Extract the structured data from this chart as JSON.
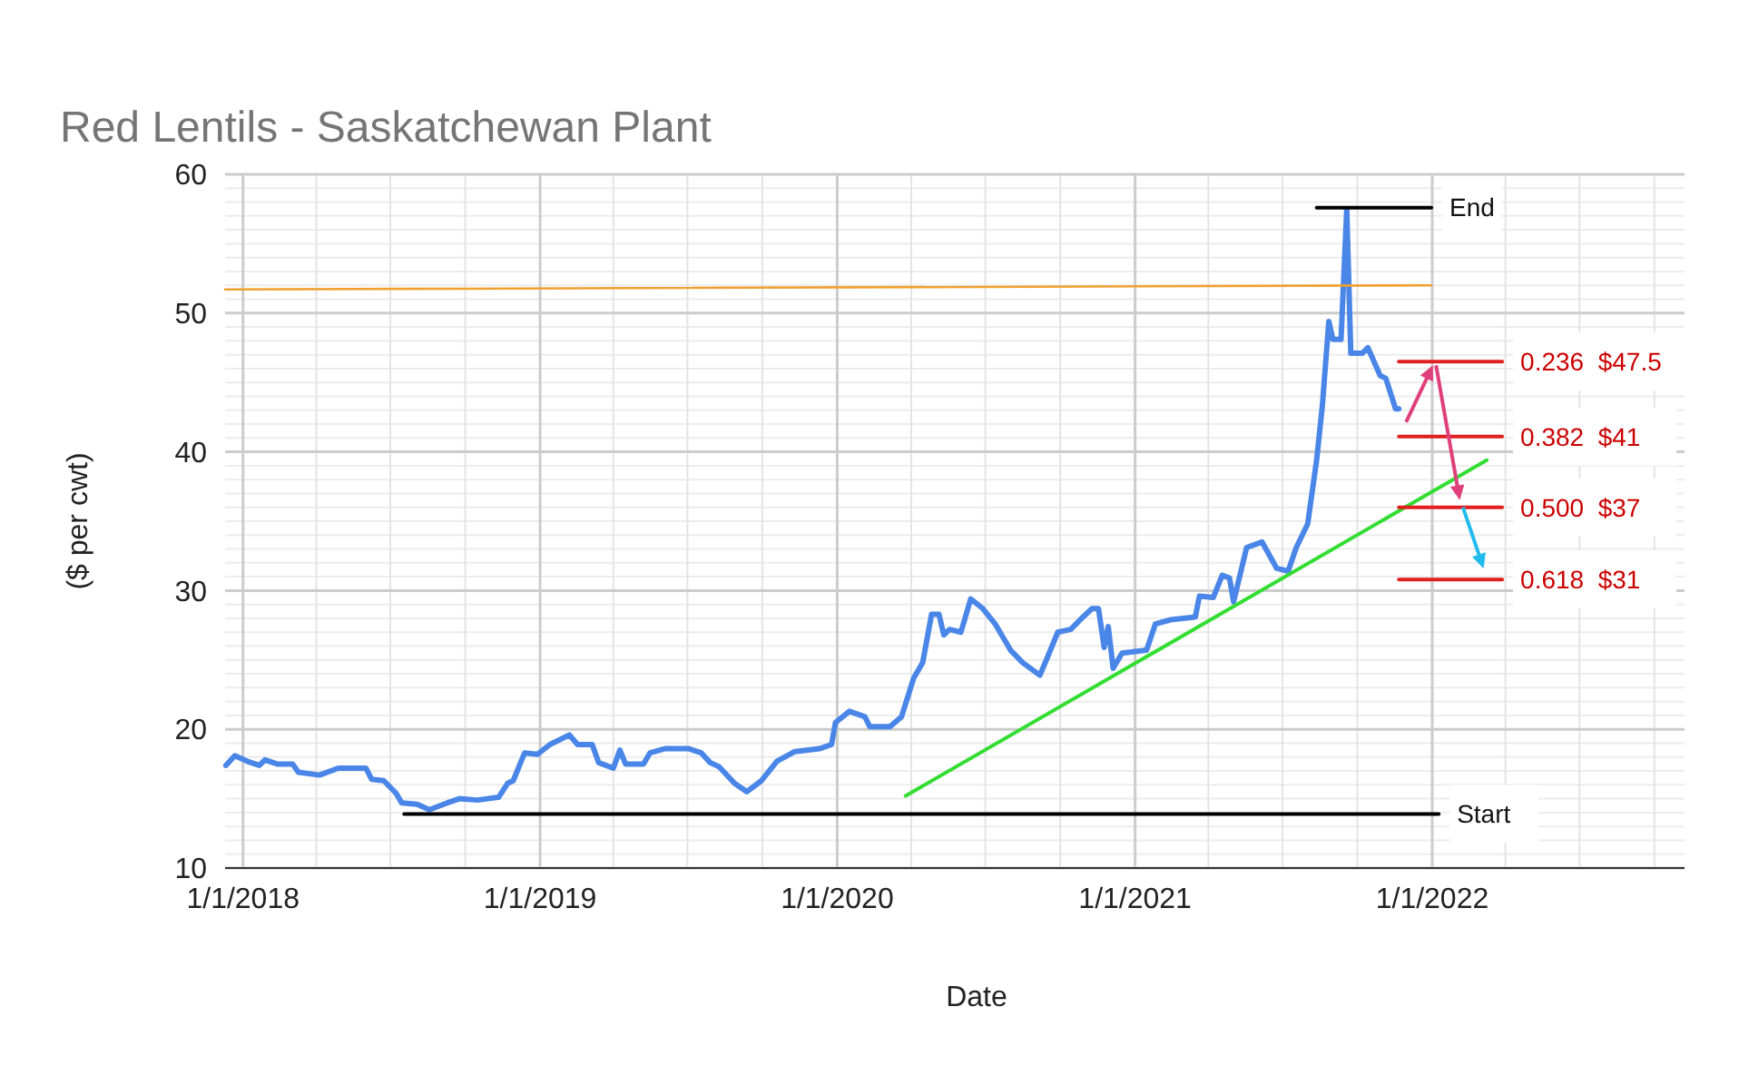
{
  "chart_data": {
    "type": "line",
    "title": "Red Lentils - Saskatchewan Plant",
    "xlabel": "Date",
    "ylabel": "($ per cwt)",
    "xlim": [
      "2017-12-10",
      "2022-11-07"
    ],
    "xticks": [
      {
        "value": "2018-01-01",
        "label": "1/1/2018"
      },
      {
        "value": "2019-01-01",
        "label": "1/1/2019"
      },
      {
        "value": "2020-01-01",
        "label": "1/1/2020"
      },
      {
        "value": "2021-01-01",
        "label": "1/1/2021"
      },
      {
        "value": "2022-01-01",
        "label": "1/1/2022"
      }
    ],
    "ylim": [
      10,
      60
    ],
    "yticks": [
      10,
      20,
      30,
      40,
      50,
      60
    ],
    "grid": true,
    "series": [
      {
        "color": "#4a86e8",
        "x": [
          "2017-12-11",
          "2017-12-22",
          "2018-01-06",
          "2018-01-21",
          "2018-01-28",
          "2018-02-12",
          "2018-03-03",
          "2018-03-10",
          "2018-04-05",
          "2018-04-28",
          "2018-06-01",
          "2018-06-08",
          "2018-06-23",
          "2018-07-08",
          "2018-07-15",
          "2018-08-03",
          "2018-08-18",
          "2018-09-09",
          "2018-09-24",
          "2018-10-16",
          "2018-11-11",
          "2018-11-22",
          "2018-11-29",
          "2018-12-13",
          "2018-12-29",
          "2019-01-13",
          "2019-02-06",
          "2019-02-16",
          "2019-03-06",
          "2019-03-14",
          "2019-04-01",
          "2019-04-09",
          "2019-04-16",
          "2019-05-08",
          "2019-05-16",
          "2019-06-03",
          "2019-07-03",
          "2019-07-18",
          "2019-07-29",
          "2019-08-09",
          "2019-08-28",
          "2019-09-12",
          "2019-09-30",
          "2019-10-19",
          "2019-11-10",
          "2019-12-10",
          "2019-12-25",
          "2019-12-30",
          "2020-01-16",
          "2020-02-04",
          "2020-02-10",
          "2020-03-06",
          "2020-03-20",
          "2020-04-04",
          "2020-04-15",
          "2020-04-26",
          "2020-05-05",
          "2020-05-11",
          "2020-05-18",
          "2020-06-01",
          "2020-06-13",
          "2020-06-28",
          "2020-07-13",
          "2020-08-01",
          "2020-08-16",
          "2020-09-06",
          "2020-09-14",
          "2020-09-28",
          "2020-10-14",
          "2020-10-29",
          "2020-11-09",
          "2020-11-17",
          "2020-11-24",
          "2020-11-29",
          "2020-12-05",
          "2020-12-16",
          "2021-01-15",
          "2021-01-26",
          "2021-02-14",
          "2021-03-16",
          "2021-03-21",
          "2021-04-07",
          "2021-04-18",
          "2021-04-27",
          "2021-05-02",
          "2021-05-18",
          "2021-06-06",
          "2021-06-24",
          "2021-07-08",
          "2021-07-18",
          "2021-08-01",
          "2021-08-12",
          "2021-08-19",
          "2021-08-27",
          "2021-09-01",
          "2021-09-11",
          "2021-09-18",
          "2021-09-23",
          "2021-10-07",
          "2021-10-14",
          "2021-10-29",
          "2021-11-05",
          "2021-11-17",
          "2021-11-21"
        ],
        "values": [
          17.4,
          18.1,
          17.7,
          17.4,
          17.8,
          17.5,
          17.5,
          16.9,
          16.7,
          17.2,
          17.2,
          16.4,
          16.3,
          15.4,
          14.7,
          14.6,
          14.2,
          14.7,
          15.0,
          14.9,
          15.1,
          16.1,
          16.3,
          18.3,
          18.2,
          18.9,
          19.6,
          18.9,
          18.9,
          17.6,
          17.2,
          18.5,
          17.5,
          17.5,
          18.3,
          18.6,
          18.6,
          18.3,
          17.6,
          17.3,
          16.1,
          15.5,
          16.3,
          17.7,
          18.4,
          18.6,
          18.9,
          20.5,
          21.3,
          20.9,
          20.2,
          20.2,
          20.9,
          23.7,
          24.8,
          28.3,
          28.3,
          26.8,
          27.2,
          27.0,
          29.4,
          28.7,
          27.6,
          25.7,
          24.8,
          23.9,
          25.0,
          27.0,
          27.2,
          28.1,
          28.7,
          28.7,
          25.9,
          27.4,
          24.4,
          25.5,
          25.7,
          27.6,
          27.9,
          28.1,
          29.6,
          29.5,
          31.1,
          30.9,
          29.2,
          33.1,
          33.5,
          31.6,
          31.4,
          33.1,
          34.8,
          39.4,
          43.3,
          49.4,
          48.1,
          48.1,
          57.5,
          47.1,
          47.1,
          47.5,
          45.5,
          45.3,
          43.1,
          43.1
        ]
      },
      {
        "color": "#f0a030",
        "x": [
          "2017-12-10",
          "2021-12-31"
        ],
        "values": [
          51.7,
          52.0
        ]
      },
      {
        "name": "Start",
        "color": "#000000",
        "x": [
          "2018-07-18",
          "2022-01-09"
        ],
        "values": [
          13.9,
          13.9
        ]
      },
      {
        "name": "End",
        "color": "#000000",
        "x": [
          "2021-08-12",
          "2021-12-31"
        ],
        "values": [
          57.6,
          57.6
        ]
      },
      {
        "color": "#33dd33",
        "x": [
          "2020-03-25",
          "2022-03-09"
        ],
        "values": [
          15.2,
          39.4
        ]
      },
      {
        "name": "0.236  $47.5",
        "color": "#e02020",
        "x": [
          "2021-11-21",
          "2022-03-28"
        ],
        "values": [
          46.5,
          46.5
        ]
      },
      {
        "name": "0.382  $41",
        "color": "#e02020",
        "x": [
          "2021-11-21",
          "2022-03-28"
        ],
        "values": [
          41.1,
          41.1
        ]
      },
      {
        "name": "0.500  $37",
        "color": "#e02020",
        "x": [
          "2021-11-21",
          "2022-03-28"
        ],
        "values": [
          36.0,
          36.0
        ]
      },
      {
        "name": "0.618  $31",
        "color": "#e02020",
        "x": [
          "2021-11-21",
          "2022-03-28"
        ],
        "values": [
          30.8,
          30.8
        ]
      }
    ]
  }
}
